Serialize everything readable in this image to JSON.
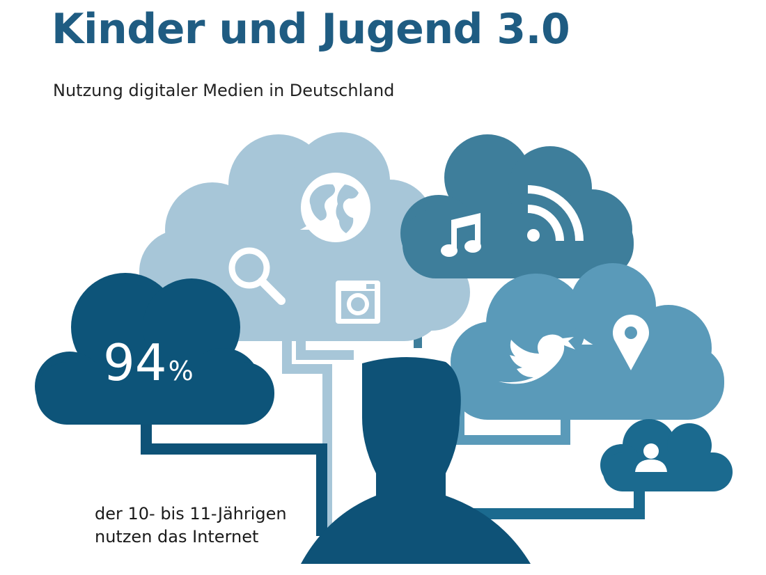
{
  "header": {
    "title": "Kinder und Jugend 3.0",
    "subtitle": "Nutzung digitaler Medien in Deutschland"
  },
  "stat": {
    "value": "94",
    "unit": "%",
    "caption_line1": "der 10- bis 11-Jährigen",
    "caption_line2": "nutzen das Internet",
    "internet_use_share_percent": 94
  },
  "colors": {
    "title": "#1f5c82",
    "navy": "#0e5277",
    "dark_cloud": "#0d5479",
    "light_cloud": "#a7c6d8",
    "mid_cloud": "#3e7e9b",
    "steel_cloud": "#5a9ab9",
    "small_cloud": "#1b6a8f",
    "light_pipe": "#a7c6d8",
    "icon_white": "#ffffff"
  },
  "icons": [
    "globe-icon",
    "search-icon",
    "instagram-icon",
    "music-note-icon",
    "rss-icon",
    "twitter-bird-icon",
    "location-pin-icon",
    "user-icon",
    "person-silhouette-icon"
  ]
}
